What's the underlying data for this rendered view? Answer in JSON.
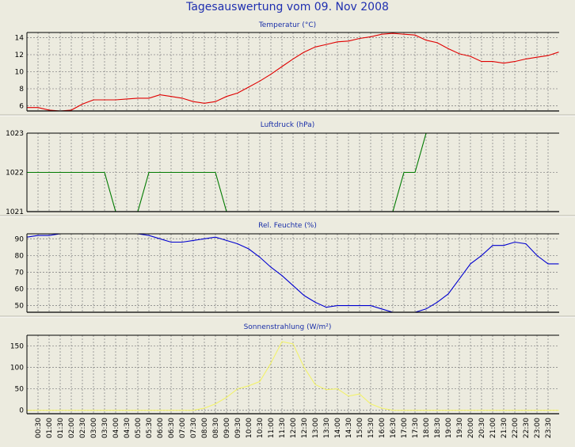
{
  "title": "Tagesauswertung vom 09. Nov 2008",
  "x_labels": [
    "00:30",
    "01:00",
    "01:30",
    "02:00",
    "02:30",
    "03:00",
    "03:30",
    "04:00",
    "04:30",
    "05:00",
    "05:30",
    "06:00",
    "06:30",
    "07:00",
    "07:30",
    "08:00",
    "08:30",
    "09:00",
    "09:30",
    "10:00",
    "10:30",
    "11:00",
    "11:30",
    "12:00",
    "12:30",
    "13:00",
    "13:30",
    "14:00",
    "14:30",
    "15:00",
    "15:30",
    "16:00",
    "16:30",
    "17:00",
    "17:30",
    "18:00",
    "18:30",
    "19:00",
    "19:30",
    "20:00",
    "20:30",
    "21:00",
    "21:30",
    "22:00",
    "22:30",
    "23:00",
    "23:30"
  ],
  "chart_data": [
    {
      "type": "line",
      "title": "Temperatur (°C)",
      "ylim": [
        5.4,
        14.6
      ],
      "yticks": [
        6,
        8,
        10,
        12,
        14
      ],
      "color": "#e00000",
      "x": [
        "00:00",
        "00:30",
        "01:00",
        "01:30",
        "02:00",
        "02:30",
        "03:00",
        "03:30",
        "04:00",
        "04:30",
        "05:00",
        "05:30",
        "06:00",
        "06:30",
        "07:00",
        "07:30",
        "08:00",
        "08:30",
        "09:00",
        "09:30",
        "10:00",
        "10:30",
        "11:00",
        "11:30",
        "12:00",
        "12:30",
        "13:00",
        "13:30",
        "14:00",
        "14:30",
        "15:00",
        "15:30",
        "16:00",
        "16:30",
        "17:00",
        "17:30",
        "18:00",
        "18:30",
        "19:00",
        "19:30",
        "20:00",
        "20:30",
        "21:00",
        "21:30",
        "22:00",
        "22:30",
        "23:00",
        "23:30",
        "23:59"
      ],
      "values": [
        5.8,
        5.8,
        5.5,
        5.4,
        5.5,
        6.2,
        6.7,
        6.7,
        6.7,
        6.8,
        6.9,
        6.9,
        7.3,
        7.1,
        6.9,
        6.5,
        6.3,
        6.5,
        7.1,
        7.5,
        8.2,
        8.9,
        9.7,
        10.6,
        11.5,
        12.3,
        12.9,
        13.2,
        13.5,
        13.6,
        13.9,
        14.1,
        14.4,
        14.5,
        14.4,
        14.3,
        13.7,
        13.4,
        12.7,
        12.1,
        11.8,
        11.2,
        11.2,
        11.0,
        11.2,
        11.5,
        11.7,
        11.9,
        12.3
      ]
    },
    {
      "type": "line",
      "title": "Luftdruck (hPa)",
      "ylim": [
        1021,
        1023
      ],
      "yticks": [
        1021,
        1022,
        1023
      ],
      "color": "#007a00",
      "x": [
        "00:00",
        "03:30",
        "04:00",
        "05:00",
        "05:30",
        "08:30",
        "09:00",
        "16:30",
        "17:00",
        "17:30",
        "18:00"
      ],
      "values": [
        1022,
        1022,
        1021,
        1021,
        1022,
        1022,
        1021,
        1021,
        1022,
        1022,
        1023
      ]
    },
    {
      "type": "line",
      "title": "Rel. Feuchte (%)",
      "ylim": [
        46,
        93
      ],
      "yticks": [
        50,
        60,
        70,
        80,
        90
      ],
      "color": "#0000d0",
      "x": [
        "00:00",
        "00:30",
        "01:00",
        "01:30",
        "05:00",
        "05:30",
        "06:00",
        "06:30",
        "07:00",
        "07:30",
        "08:00",
        "08:30",
        "09:00",
        "09:30",
        "10:00",
        "10:30",
        "11:00",
        "11:30",
        "12:00",
        "12:30",
        "13:00",
        "13:30",
        "14:00",
        "14:30",
        "15:00",
        "15:30",
        "16:00",
        "16:30",
        "17:00",
        "17:30",
        "18:00",
        "18:30",
        "19:00",
        "19:30",
        "20:00",
        "20:30",
        "21:00",
        "21:30",
        "22:00",
        "22:30",
        "23:00",
        "23:30",
        "23:59"
      ],
      "values": [
        91,
        92,
        92,
        93,
        93,
        92,
        90,
        88,
        88,
        89,
        90,
        91,
        89,
        87,
        84,
        79,
        73,
        68,
        62,
        56,
        52,
        49,
        50,
        50,
        50,
        50,
        48,
        46,
        46,
        46,
        48,
        52,
        57,
        66,
        75,
        80,
        86,
        86,
        88,
        87,
        80,
        75,
        75
      ]
    },
    {
      "type": "line",
      "title": "Sonnenstrahlung (W/m²)",
      "ylim": [
        -8,
        175
      ],
      "yticks": [
        0,
        50,
        100,
        150
      ],
      "color": "#f2f26a",
      "x": [
        "00:00",
        "07:00",
        "07:30",
        "08:00",
        "08:30",
        "09:00",
        "09:30",
        "10:00",
        "10:30",
        "11:00",
        "11:30",
        "12:00",
        "12:30",
        "13:00",
        "13:30",
        "14:00",
        "14:30",
        "15:00",
        "15:30",
        "16:00",
        "16:30",
        "17:00",
        "17:30",
        "18:00",
        "23:59"
      ],
      "values": [
        0,
        0,
        0,
        5,
        15,
        30,
        50,
        57,
        67,
        110,
        160,
        155,
        100,
        60,
        48,
        50,
        33,
        38,
        15,
        5,
        0,
        0,
        0,
        0,
        0
      ]
    }
  ]
}
